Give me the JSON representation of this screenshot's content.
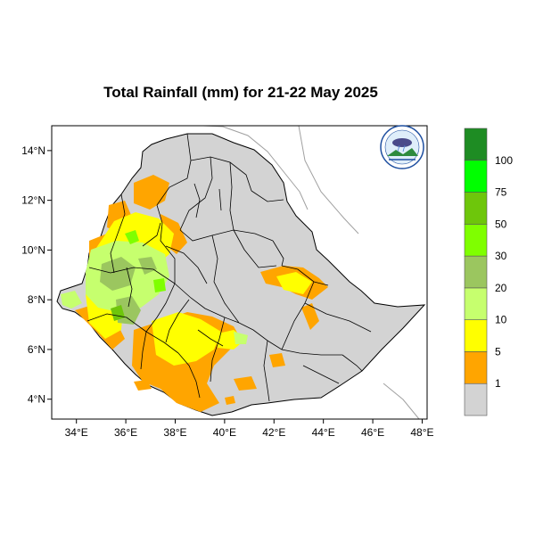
{
  "title": "Total Rainfall (mm) for 21-22 May 2025",
  "longitude_ticks": [
    {
      "value": 34,
      "label": "34°E"
    },
    {
      "value": 36,
      "label": "36°E"
    },
    {
      "value": 38,
      "label": "38°E"
    },
    {
      "value": 40,
      "label": "40°E"
    },
    {
      "value": 42,
      "label": "42°E"
    },
    {
      "value": 44,
      "label": "44°E"
    },
    {
      "value": 46,
      "label": "46°E"
    },
    {
      "value": 48,
      "label": "48°E"
    }
  ],
  "latitude_ticks": [
    {
      "value": 14,
      "label": "14°N"
    },
    {
      "value": 12,
      "label": "12°N"
    },
    {
      "value": 10,
      "label": "10°N"
    },
    {
      "value": 8,
      "label": "8°N"
    },
    {
      "value": 6,
      "label": "6°N"
    },
    {
      "value": 4,
      "label": "4°N"
    }
  ],
  "extent": {
    "lon_min": 33,
    "lon_max": 48.2,
    "lat_min": 3.2,
    "lat_max": 15
  },
  "legend": {
    "bins": [
      {
        "color": "#d3d3d3",
        "label": "1"
      },
      {
        "color": "#ffa500",
        "label": "5"
      },
      {
        "color": "#ffff00",
        "label": "10"
      },
      {
        "color": "#c6ff6e",
        "label": "20"
      },
      {
        "color": "#9bc65f",
        "label": "30"
      },
      {
        "color": "#7fff00",
        "label": "50"
      },
      {
        "color": "#6ec60b",
        "label": "75"
      },
      {
        "color": "#00ff00",
        "label": "100"
      },
      {
        "color": "#1e8c23",
        "label": ""
      }
    ]
  },
  "colors": {
    "country_fill": "#d3d3d3",
    "neighbor_border": "#a0a0a0",
    "region_border": "#000000"
  },
  "logo_icon": "ethiopian-meteorology-institute-logo"
}
